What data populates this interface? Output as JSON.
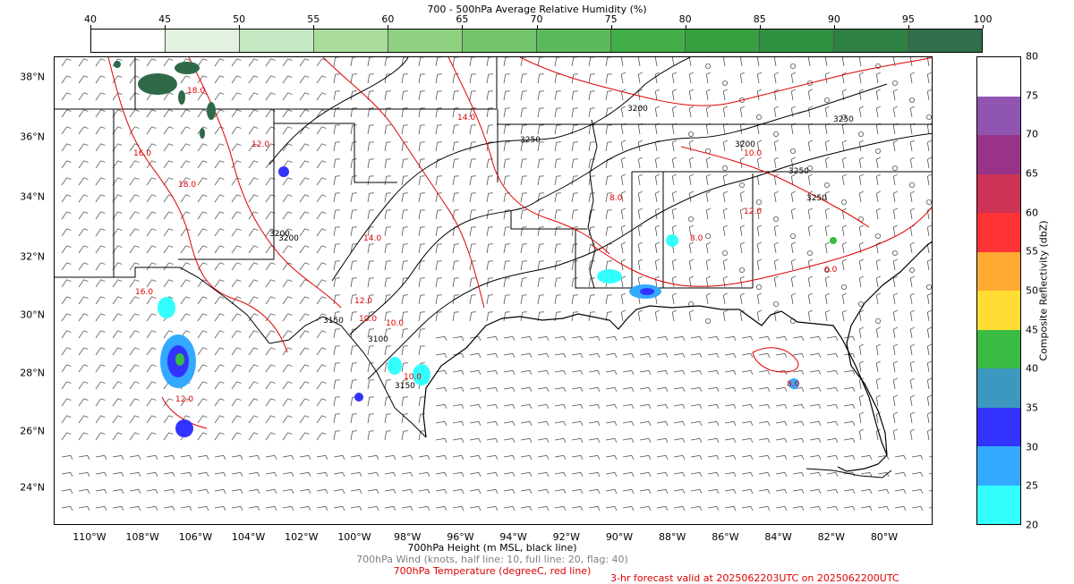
{
  "humidity_colorbar": {
    "title": "700 - 500hPa Average Relative Humidity (%)",
    "ticks": [
      "40",
      "45",
      "50",
      "55",
      "60",
      "65",
      "70",
      "75",
      "80",
      "85",
      "90",
      "95",
      "100"
    ],
    "colors": [
      "#ffffff",
      "#e3f2e0",
      "#c5e7c1",
      "#a9dc9c",
      "#8dd07f",
      "#73c56b",
      "#5bba5c",
      "#42ae48",
      "#35a040",
      "#309041",
      "#2f8043",
      "#306f49",
      "#2e6a47"
    ]
  },
  "reflectivity_colorbar": {
    "title": "Composite Reflectivity (dbZ)",
    "ticks": [
      "20",
      "25",
      "30",
      "35",
      "40",
      "45",
      "50",
      "55",
      "60",
      "65",
      "70",
      "75",
      "80"
    ],
    "colors": [
      "#33ffff",
      "#33aaff",
      "#3333ff",
      "#3d98bf",
      "#39bb44",
      "#ffdd33",
      "#ffaa33",
      "#ff3333",
      "#cc3355",
      "#993388",
      "#9055b0",
      "#ffffff"
    ]
  },
  "map": {
    "lat_labels": [
      "38°N",
      "36°N",
      "34°N",
      "32°N",
      "30°N",
      "28°N",
      "26°N",
      "24°N"
    ],
    "lon_labels": [
      "110°W",
      "108°W",
      "106°W",
      "104°W",
      "102°W",
      "100°W",
      "98°W",
      "96°W",
      "94°W",
      "92°W",
      "90°W",
      "88°W",
      "86°W",
      "84°W",
      "82°W",
      "80°W"
    ],
    "height_contour_labels": [
      "3200",
      "3200",
      "3250",
      "3250",
      "3150",
      "3100",
      "3200",
      "3250",
      "3150",
      "3200",
      "3250"
    ],
    "temp_contour_labels": [
      "18.0",
      "18.0",
      "16.0",
      "12.0",
      "14.0",
      "10.0",
      "10.0",
      "12.0",
      "8.0",
      "14.0",
      "8.0",
      "10.0",
      "16.0",
      "8.0",
      "12.0",
      "12.0",
      "10.0",
      "6.0"
    ],
    "colors": {
      "height": "#000000",
      "temperature": "#e00000",
      "wind": "#555555",
      "coast": "#000000",
      "humidity": "#2e6a47"
    }
  },
  "captions": {
    "height": "700hPa Height (m MSL, black line)",
    "wind": "700hPa Wind (knots, half line: 10, full line: 20, flag: 40)",
    "temperature": "700hPa Temperature (degreeC, red line)",
    "valid": "3-hr forecast valid at 2025062203UTC on 2025062200UTC"
  }
}
